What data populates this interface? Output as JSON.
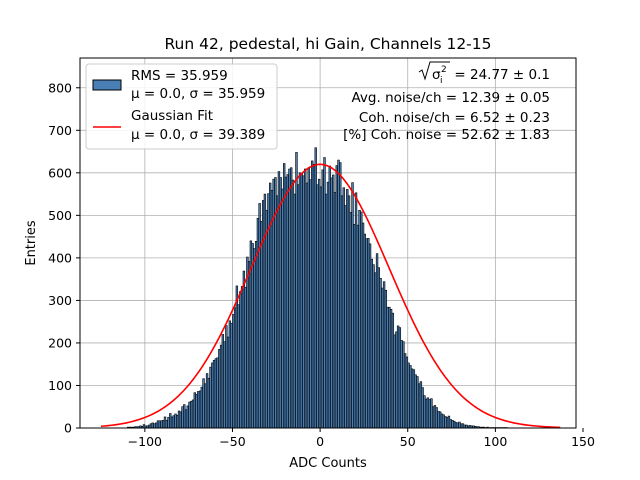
{
  "chart_data": {
    "type": "bar",
    "title": "Run 42, pedestal, hi Gain, Channels 12-15",
    "xlabel": "ADC Counts",
    "ylabel": "Entries",
    "xlim": [
      -137,
      146
    ],
    "ylim": [
      0,
      870
    ],
    "xticks": [
      -100,
      -50,
      0,
      50,
      100,
      150
    ],
    "xtick_labels": [
      "−100",
      "−50",
      "0",
      "50",
      "100",
      "150"
    ],
    "yticks": [
      0,
      100,
      200,
      300,
      400,
      500,
      600,
      700,
      800
    ],
    "yticks_labels": [
      "0",
      "100",
      "200",
      "300",
      "400",
      "500",
      "600",
      "700",
      "800"
    ],
    "grid": true,
    "legend_position": "upper left",
    "histogram": {
      "name": "RMS = 35.959",
      "label_line2": "μ = 0.0, σ = 35.959",
      "color": "#4a7fb5",
      "edgecolor": "#000000",
      "bin_width": 1,
      "x_start": -110,
      "counts": [
        2,
        2,
        2,
        2,
        3,
        3,
        3,
        5,
        4,
        8,
        5,
        5,
        7,
        10,
        12,
        10,
        12,
        17,
        17,
        17,
        18,
        26,
        18,
        25,
        34,
        26,
        29,
        33,
        30,
        40,
        38,
        50,
        55,
        43,
        52,
        61,
        63,
        66,
        83,
        79,
        86,
        87,
        96,
        116,
        104,
        128,
        117,
        143,
        153,
        159,
        163,
        165,
        185,
        195,
        220,
        203,
        241,
        214,
        252,
        246,
        267,
        283,
        334,
        290,
        321,
        333,
        369,
        331,
        402,
        392,
        440,
        434,
        422,
        439,
        493,
        528,
        486,
        535,
        550,
        512,
        551,
        576,
        559,
        585,
        589,
        546,
        603,
        589,
        562,
        622,
        590,
        596,
        609,
        612,
        583,
        550,
        648,
        572,
        600,
        598,
        593,
        609,
        576,
        612,
        584,
        628,
        620,
        659,
        572,
        585,
        567,
        607,
        636,
        550,
        578,
        616,
        588,
        595,
        554,
        617,
        630,
        624,
        546,
        565,
        523,
        561,
        546,
        507,
        577,
        479,
        553,
        477,
        512,
        508,
        482,
        456,
        445,
        446,
        433,
        397,
        384,
        365,
        410,
        377,
        352,
        329,
        344,
        324,
        284,
        284,
        279,
        270,
        219,
        226,
        240,
        236,
        206,
        203,
        175,
        167,
        153,
        147,
        139,
        137,
        125,
        121,
        104,
        109,
        95,
        76,
        68,
        71,
        67,
        69,
        50,
        53,
        48,
        39,
        38,
        33,
        31,
        27,
        25,
        28,
        20,
        18,
        16,
        13,
        12,
        14,
        10,
        10,
        7,
        7,
        5,
        6,
        5,
        5,
        4,
        3,
        3,
        2,
        2,
        2,
        1,
        2,
        1,
        1,
        1,
        1,
        1,
        1,
        1,
        1,
        1,
        1,
        1
      ]
    },
    "fit": {
      "name": "Gaussian Fit",
      "label_line2": "μ = 0.0, σ = 39.389",
      "color": "#ff0000",
      "mu": 0.0,
      "sigma": 39.389,
      "amplitude": 620,
      "x_range": [
        -125,
        137
      ]
    },
    "annotations": [
      {
        "sqrt_part": "= 24.77 ± 0.1"
      },
      {
        "text": "Avg. noise/ch = 12.39 ± 0.05"
      },
      {
        "text": "Coh. noise/ch = 6.52 ± 0.23"
      },
      {
        "text": "[%] Coh. noise = 52.62 ± 1.83"
      }
    ]
  }
}
